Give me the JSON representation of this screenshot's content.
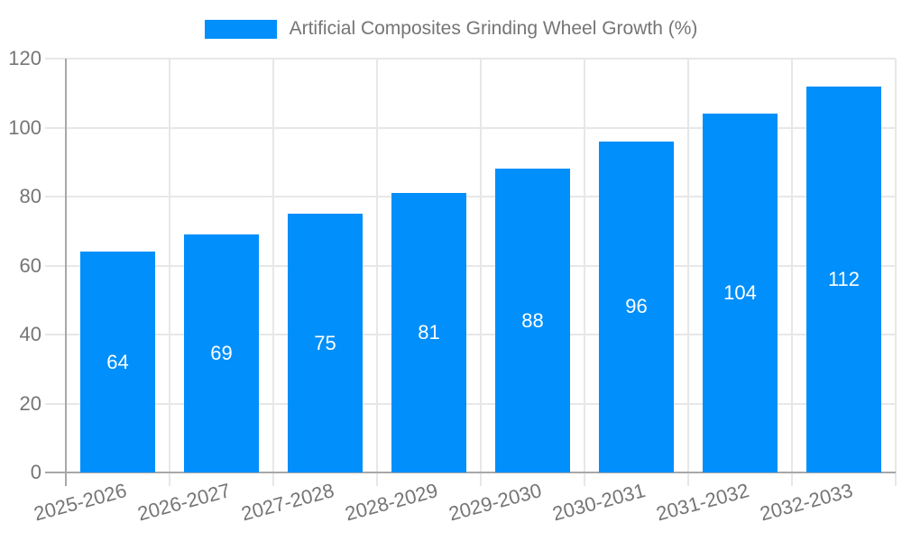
{
  "chart_data": {
    "type": "bar",
    "title": "Artificial Composites Grinding Wheel Growth (%)",
    "categories": [
      "2025-2026",
      "2026-2027",
      "2027-2028",
      "2028-2029",
      "2029-2030",
      "2030-2031",
      "2031-2032",
      "2032-2033"
    ],
    "values": [
      64,
      69,
      75,
      81,
      88,
      96,
      104,
      112
    ],
    "xlabel": "",
    "ylabel": "",
    "ylim": [
      0,
      120
    ],
    "yticks": [
      0,
      20,
      40,
      60,
      80,
      100,
      120
    ],
    "grid": true,
    "legend_position": "top-center",
    "bar_labels_inside": true,
    "colors": {
      "bar": "#008FFB",
      "bar_label": "#ffffff",
      "axis_text": "#757575",
      "grid_line": "#e7e7e7",
      "axis_line": "#a8a8a8",
      "background": "#ffffff"
    }
  }
}
